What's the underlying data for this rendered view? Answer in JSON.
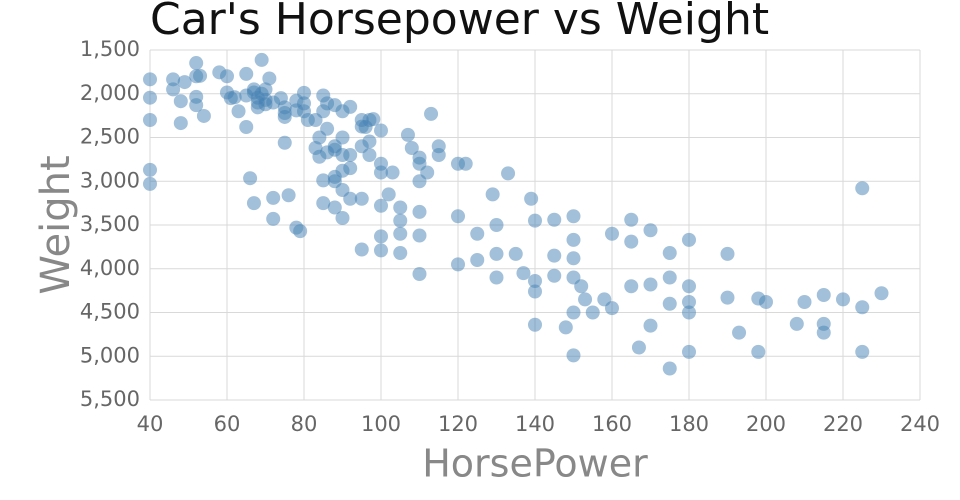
{
  "chart_data": {
    "type": "scatter",
    "title": "Car's Horsepower vs Weight",
    "xlabel": "HorsePower",
    "ylabel": "Weight",
    "color": "#4682b4",
    "marker_opacity": 0.5,
    "grid": true,
    "xlim": [
      40,
      240
    ],
    "xticks": [
      40,
      60,
      80,
      100,
      120,
      140,
      160,
      180,
      200,
      220,
      240
    ],
    "ylim": [
      5500,
      1500
    ],
    "yticks": [
      {
        "value": 1500,
        "label": "1,500"
      },
      {
        "value": 2000,
        "label": "2,000"
      },
      {
        "value": 2500,
        "label": "2,500"
      },
      {
        "value": 3000,
        "label": "3,000"
      },
      {
        "value": 3500,
        "label": "3,500"
      },
      {
        "value": 4000,
        "label": "4,000"
      },
      {
        "value": 4500,
        "label": "4,500"
      },
      {
        "value": 5000,
        "label": "5,000"
      },
      {
        "value": 5500,
        "label": "5,500"
      }
    ],
    "x": [
      40,
      40,
      40,
      40,
      40,
      46,
      46,
      48,
      48,
      49,
      52,
      52,
      52,
      52,
      53,
      54,
      58,
      60,
      60,
      61,
      62,
      63,
      65,
      65,
      66,
      67,
      67,
      68,
      68,
      69,
      70,
      70,
      71,
      72,
      72,
      72,
      75,
      75,
      75,
      76,
      78,
      78,
      79,
      80,
      80,
      81,
      83,
      84,
      85,
      85,
      86,
      86,
      88,
      88,
      88,
      88,
      90,
      90,
      90,
      90,
      92,
      92,
      95,
      95,
      95,
      95,
      96,
      97,
      97,
      98,
      100,
      100,
      100,
      100,
      100,
      102,
      103,
      105,
      105,
      105,
      107,
      108,
      110,
      110,
      110,
      110,
      112,
      113,
      115,
      115,
      120,
      120,
      120,
      122,
      125,
      125,
      129,
      130,
      130,
      130,
      133,
      135,
      137,
      139,
      140,
      140,
      140,
      140,
      145,
      145,
      145,
      148,
      150,
      150,
      150,
      150,
      150,
      150,
      152,
      153,
      155,
      158,
      160,
      160,
      165,
      165,
      165,
      167,
      170,
      170,
      170,
      175,
      175,
      175,
      175,
      180,
      180,
      180,
      180,
      180,
      190,
      190,
      193,
      198,
      198,
      200,
      208,
      210,
      215,
      215,
      215,
      220,
      225,
      225,
      225,
      230,
      65,
      67,
      68,
      69,
      70,
      74,
      75,
      78,
      80,
      83,
      85,
      85,
      86,
      88,
      90,
      92,
      95,
      97,
      100,
      105,
      110,
      110,
      88,
      90,
      84,
      92
    ],
    "values": [
      1835,
      2045,
      2300,
      2870,
      3030,
      1835,
      1950,
      2085,
      2335,
      1867,
      1800,
      1649,
      2035,
      2130,
      1795,
      2254,
      1755,
      1800,
      1985,
      2050,
      2040,
      2200,
      1773,
      2380,
      2965,
      3250,
      1985,
      2045,
      2155,
      1613,
      2070,
      1950,
      1825,
      2100,
      3190,
      3430,
      2265,
      2155,
      2560,
      3160,
      2190,
      3530,
      3570,
      2200,
      1990,
      2300,
      2620,
      2720,
      3250,
      2990,
      2670,
      2110,
      2640,
      3000,
      3300,
      2130,
      2880,
      2500,
      3100,
      3420,
      2150,
      2850,
      2375,
      2600,
      3200,
      3780,
      2380,
      2300,
      2545,
      2290,
      2800,
      3280,
      3630,
      3790,
      2420,
      3150,
      2900,
      3450,
      3600,
      3820,
      2470,
      2620,
      2730,
      3350,
      3620,
      4060,
      2900,
      2230,
      2600,
      2700,
      2800,
      3400,
      3950,
      2800,
      3600,
      3900,
      3150,
      3500,
      3830,
      4100,
      2910,
      3830,
      4050,
      3200,
      3450,
      4140,
      4260,
      4640,
      3440,
      3850,
      4080,
      4670,
      3400,
      3670,
      3880,
      4100,
      4500,
      4990,
      4200,
      4350,
      4500,
      4350,
      3600,
      4450,
      3440,
      3690,
      4200,
      4900,
      3560,
      4180,
      4650,
      3820,
      4100,
      4400,
      5140,
      3670,
      4380,
      4200,
      4500,
      4950,
      3830,
      4330,
      4730,
      4340,
      4950,
      4380,
      4630,
      4380,
      4300,
      4630,
      4730,
      4350,
      3080,
      4440,
      4950,
      4280,
      2020,
      1950,
      2100,
      2000,
      2120,
      2050,
      2220,
      2080,
      2110,
      2300,
      2020,
      2200,
      2400,
      2600,
      2700,
      2700,
      2300,
      2700,
      2900,
      3300,
      3000,
      2800,
      2950,
      2200,
      2500,
      3200
    ]
  }
}
